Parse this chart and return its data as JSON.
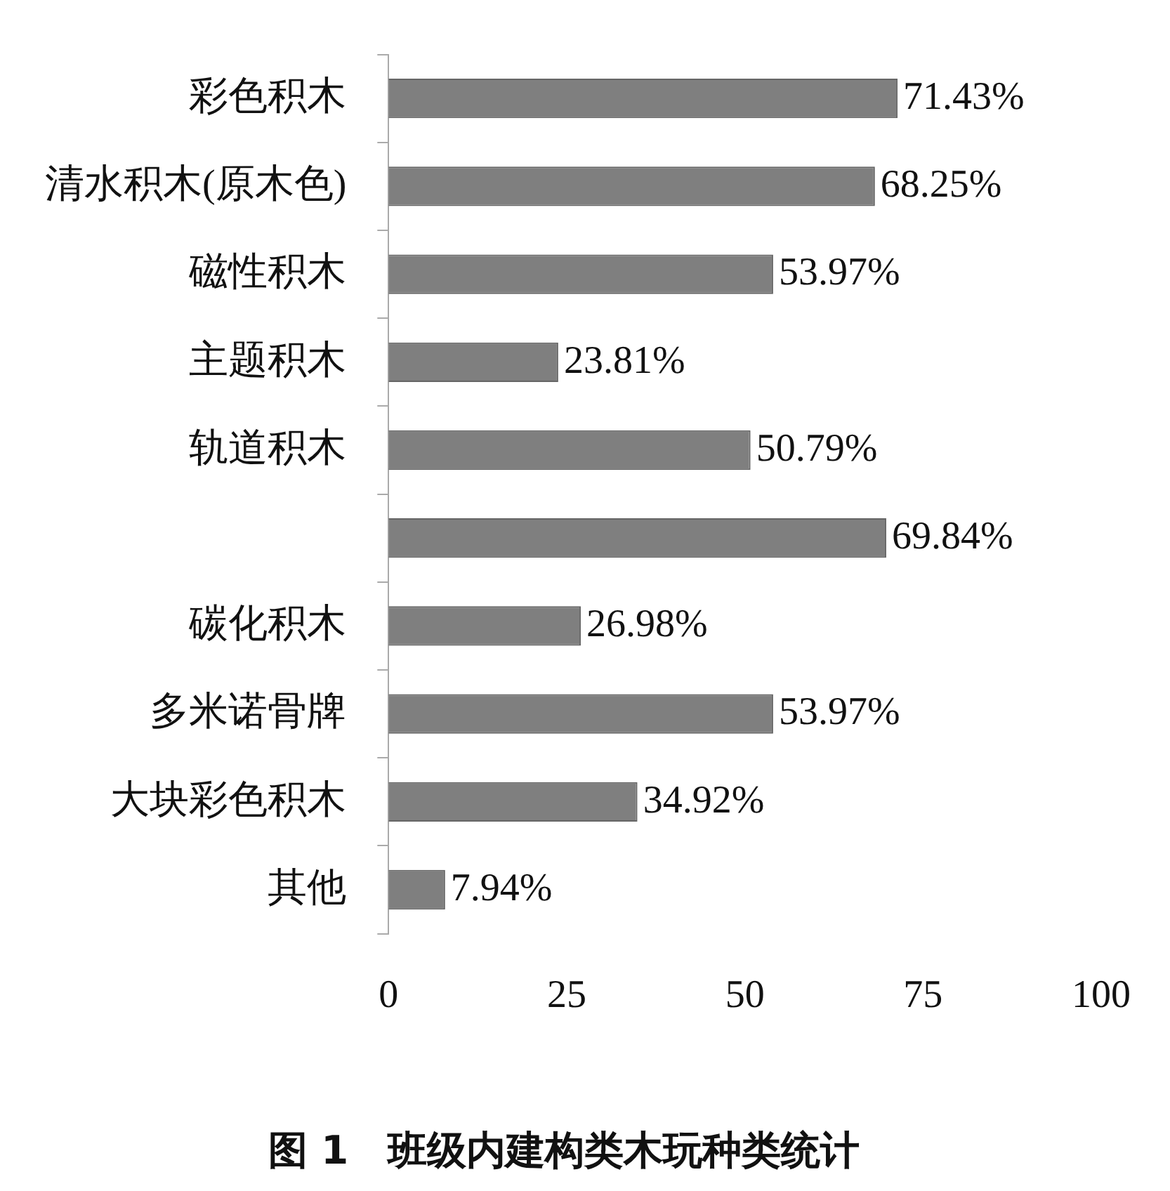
{
  "chart_data": {
    "type": "bar",
    "orientation": "horizontal",
    "title": "图 1　班级内建构类木玩种类统计",
    "categories": [
      "彩色积木",
      "清水积木(原木色)",
      "磁性积木",
      "主题积木",
      "轨道积木",
      null,
      "碳化积木",
      "多米诺骨牌",
      "大块彩色积木",
      "其他"
    ],
    "values": [
      71.43,
      68.25,
      53.97,
      23.81,
      50.79,
      69.84,
      26.98,
      53.97,
      34.92,
      7.94
    ],
    "value_labels": [
      "71.43%",
      "68.25%",
      "53.97%",
      "23.81%",
      "50.79%",
      "69.84%",
      "26.98%",
      "53.97%",
      "34.92%",
      "7.94%"
    ],
    "color": "#7f7f7f",
    "xlim": [
      0,
      100
    ],
    "xticks": [
      0,
      25,
      50,
      75,
      100
    ],
    "grid": false,
    "legend": false
  }
}
